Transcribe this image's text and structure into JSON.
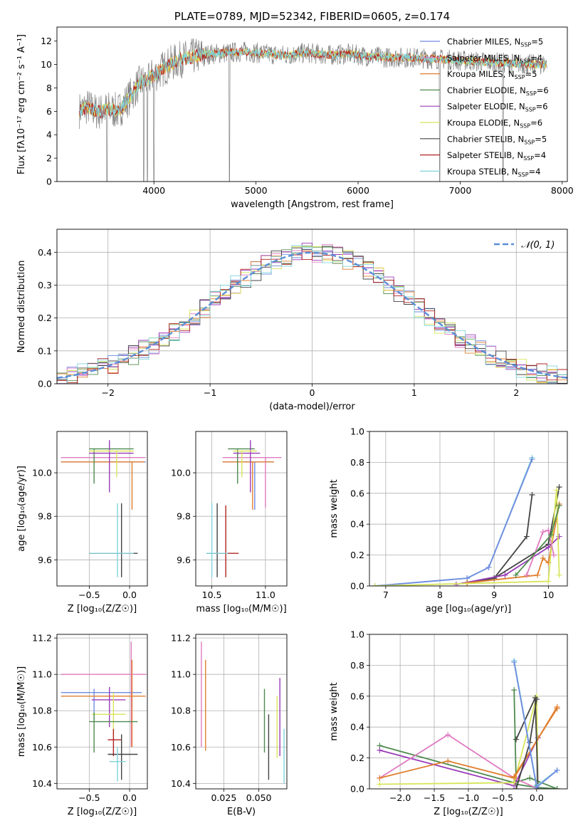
{
  "colors": {
    "chabrier_miles": "#6f8bdf",
    "salpeter_miles": "#e07bc0",
    "kroupa_miles": "#e07f2f",
    "chabrier_elodie": "#4f8a4f",
    "salpeter_elodie": "#9a3cb8",
    "kroupa_elodie": "#d8e55b",
    "chabrier_stelib": "#444444",
    "salpeter_stelib": "#b22222",
    "kroupa_stelib": "#7fd4dc",
    "gaussian": "#5b8ed6",
    "spectrum_gray": "#808080",
    "grid": "#b0b0b0"
  },
  "chart_data": [
    {
      "id": "spectrum",
      "type": "line",
      "title": "PLATE=0789, MJD=52342, FIBERID=0605, z=0.174",
      "xlabel": "wavelength [Angstrom, rest frame]",
      "ylabel": "Flux [fλ10⁻¹⁷ erg cm⁻² s⁻¹ A⁻¹]",
      "xlim": [
        3050,
        8050
      ],
      "ylim": [
        0,
        13.2
      ],
      "xticks": [
        "4000",
        "5000",
        "6000",
        "7000",
        "8000"
      ],
      "yticks": [
        "0",
        "2",
        "4",
        "6",
        "8",
        "10",
        "12"
      ],
      "grid": false,
      "legend_position": "right",
      "legend": [
        {
          "label": "Chabrier MILES, N",
          "sub": "SSP",
          "tail": "=5"
        },
        {
          "label": "Salpeter MILES, N",
          "sub": "SSP",
          "tail": "=4"
        },
        {
          "label": "Kroupa MILES, N",
          "sub": "SSP",
          "tail": "=5"
        },
        {
          "label": "Chabrier ELODIE, N",
          "sub": "SSP",
          "tail": "=6"
        },
        {
          "label": "Salpeter ELODIE, N",
          "sub": "SSP",
          "tail": "=6"
        },
        {
          "label": "Kroupa ELODIE, N",
          "sub": "SSP",
          "tail": "=6"
        },
        {
          "label": "Chabrier STELIB, N",
          "sub": "SSP",
          "tail": "=5"
        },
        {
          "label": "Salpeter STELIB, N",
          "sub": "SSP",
          "tail": "=4"
        },
        {
          "label": "Kroupa STELIB, N",
          "sub": "SSP",
          "tail": "=4"
        }
      ],
      "continuum": {
        "x": [
          3270,
          3350,
          3450,
          3550,
          3650,
          3750,
          3850,
          3950,
          4050,
          4150,
          4250,
          4400,
          4550,
          4700,
          4900,
          5100,
          5300,
          5500,
          5700,
          5900,
          6100,
          6300,
          6500,
          6700,
          6900,
          7100,
          7300,
          7500,
          7700,
          7850
        ],
        "y": [
          6.1,
          6.4,
          5.9,
          6.2,
          6.0,
          7.1,
          8.3,
          8.8,
          9.4,
          10.0,
          10.4,
          10.7,
          10.9,
          11.0,
          11.1,
          10.9,
          10.8,
          11.0,
          10.8,
          10.9,
          10.7,
          10.6,
          10.6,
          10.5,
          10.4,
          10.3,
          10.2,
          10.1,
          10.0,
          10.0
        ]
      },
      "dips": [
        {
          "x": 3540,
          "depth": 0.0
        },
        {
          "x": 3900,
          "depth": 0.0
        },
        {
          "x": 3935,
          "depth": 0.0
        },
        {
          "x": 4000,
          "depth": 0.0
        },
        {
          "x": 4740,
          "depth": 0.0
        },
        {
          "x": 6800,
          "depth": 0.0
        },
        {
          "x": 7420,
          "depth": 0.0
        }
      ]
    },
    {
      "id": "residuals",
      "type": "histogram",
      "xlabel": "(data-model)/error",
      "ylabel": "Normed distribution",
      "xlim": [
        -2.5,
        2.5
      ],
      "ylim": [
        0,
        0.47
      ],
      "xticks": [
        "−2",
        "−1",
        "0",
        "1",
        "2"
      ],
      "yticks": [
        "0.0",
        "0.1",
        "0.2",
        "0.3",
        "0.4"
      ],
      "grid": true,
      "legend_position": "top-right",
      "legend": "𝒩(0, 1)",
      "bin_width": 0.1
    },
    {
      "id": "age_vs_Z",
      "type": "errorbar",
      "xlabel": "Z [log₁₀(Z/Z☉)]",
      "ylabel": "age  [log₁₀(age/yr)]",
      "xlim": [
        -0.9,
        0.22
      ],
      "ylim": [
        9.48,
        10.19
      ],
      "xticks": [
        "−0.5",
        "0.0"
      ],
      "yticks": [
        "9.6",
        "9.8",
        "10.0"
      ],
      "grid": true,
      "points": [
        {
          "series": "chabrier_miles",
          "x": -0.85,
          "xe": [
            -0.85,
            0.2
          ],
          "y": 10.05,
          "ye": [
            10.05,
            10.05
          ]
        },
        {
          "series": "salpeter_miles",
          "x": -0.85,
          "xe": [
            -0.85,
            0.2
          ],
          "y": 10.07,
          "ye": [
            10.07,
            10.07
          ]
        },
        {
          "series": "kroupa_miles",
          "x": 0.03,
          "xe": [
            -0.85,
            0.18
          ],
          "y": 10.05,
          "ye": [
            9.83,
            10.05
          ]
        },
        {
          "series": "chabrier_elodie",
          "x": -0.44,
          "xe": [
            -0.5,
            0.05
          ],
          "y": 10.11,
          "ye": [
            9.95,
            10.11
          ]
        },
        {
          "series": "salpeter_elodie",
          "x": -0.25,
          "xe": [
            -0.5,
            0.05
          ],
          "y": 10.09,
          "ye": [
            9.91,
            10.15
          ]
        },
        {
          "series": "kroupa_elodie",
          "x": -0.16,
          "xe": [
            -0.5,
            0.05
          ],
          "y": 10.1,
          "ye": [
            9.98,
            10.1
          ]
        },
        {
          "series": "chabrier_stelib",
          "x": -0.1,
          "xe": [
            -0.5,
            0.1
          ],
          "y": 9.63,
          "ye": [
            9.52,
            9.86
          ]
        },
        {
          "series": "salpeter_stelib",
          "x": -0.27,
          "xe": [
            -0.5,
            0.05
          ],
          "y": 9.63,
          "ye": [
            9.63,
            9.63
          ]
        },
        {
          "series": "kroupa_stelib",
          "x": -0.15,
          "xe": [
            -0.5,
            0.05
          ],
          "y": 9.63,
          "ye": [
            9.52,
            9.86
          ]
        }
      ]
    },
    {
      "id": "age_vs_mass",
      "type": "errorbar",
      "xlabel": "mass [log₁₀(M/M☉)]",
      "ylabel": "",
      "xlim": [
        10.35,
        11.2
      ],
      "ylim": [
        9.48,
        10.19
      ],
      "xticks": [
        "10.5",
        "11.0"
      ],
      "yticks": [
        "9.6",
        "9.8",
        "10.0"
      ],
      "grid": true,
      "points": [
        {
          "series": "chabrier_miles",
          "x": 10.9,
          "xe": [
            10.6,
            11.08
          ],
          "y": 10.05,
          "ye": [
            9.83,
            10.05
          ]
        },
        {
          "series": "salpeter_miles",
          "x": 11.0,
          "xe": [
            10.6,
            11.15
          ],
          "y": 10.07,
          "ye": [
            9.84,
            10.07
          ]
        },
        {
          "series": "kroupa_miles",
          "x": 10.88,
          "xe": [
            10.6,
            11.08
          ],
          "y": 10.05,
          "ye": [
            9.83,
            10.05
          ]
        },
        {
          "series": "chabrier_elodie",
          "x": 10.74,
          "xe": [
            10.65,
            10.9
          ],
          "y": 10.11,
          "ye": [
            9.95,
            10.11
          ]
        },
        {
          "series": "salpeter_elodie",
          "x": 10.86,
          "xe": [
            10.7,
            10.95
          ],
          "y": 10.09,
          "ye": [
            9.91,
            10.15
          ]
        },
        {
          "series": "kroupa_elodie",
          "x": 10.78,
          "xe": [
            10.7,
            10.92
          ],
          "y": 10.1,
          "ye": [
            9.98,
            10.1
          ]
        },
        {
          "series": "chabrier_stelib",
          "x": 10.55,
          "xe": [
            10.45,
            10.65
          ],
          "y": 9.63,
          "ye": [
            9.52,
            9.86
          ]
        },
        {
          "series": "salpeter_stelib",
          "x": 10.63,
          "xe": [
            10.5,
            10.75
          ],
          "y": 9.63,
          "ye": [
            9.52,
            9.85
          ]
        },
        {
          "series": "kroupa_stelib",
          "x": 10.5,
          "xe": [
            10.45,
            10.65
          ],
          "y": 9.63,
          "ye": [
            9.52,
            9.86
          ]
        }
      ]
    },
    {
      "id": "mass_weight_vs_age",
      "type": "line",
      "xlabel": "age  [log₁₀(age/yr)]",
      "ylabel": "mass weight",
      "xlim": [
        6.7,
        10.35
      ],
      "ylim": [
        0,
        1.0
      ],
      "xticks": [
        "7",
        "8",
        "9",
        "10"
      ],
      "yticks": [
        "0.0",
        "0.2",
        "0.4",
        "0.6",
        "0.8",
        "1.0"
      ],
      "grid": true,
      "series": [
        {
          "series": "kroupa_stelib",
          "x": [
            6.8,
            8.5,
            8.9,
            9.7
          ],
          "y": [
            0.0,
            0.05,
            0.12,
            0.83
          ]
        },
        {
          "series": "chabrier_miles",
          "x": [
            6.8,
            8.5,
            8.9,
            9.7
          ],
          "y": [
            0.0,
            0.05,
            0.12,
            0.82
          ]
        },
        {
          "series": "chabrier_stelib",
          "x": [
            8.5,
            9.0,
            9.6,
            9.7
          ],
          "y": [
            0.02,
            0.05,
            0.32,
            0.59
          ]
        },
        {
          "series": "chabrier_stelib",
          "x": [
            8.5,
            9.0,
            10.0,
            10.2
          ],
          "y": [
            0.02,
            0.05,
            0.27,
            0.64
          ]
        },
        {
          "series": "salpeter_elodie",
          "x": [
            8.3,
            9.2,
            10.0,
            10.2
          ],
          "y": [
            0.01,
            0.07,
            0.25,
            0.32
          ]
        },
        {
          "series": "kroupa_miles",
          "x": [
            8.5,
            9.8,
            9.9,
            10.0,
            10.2
          ],
          "y": [
            0.02,
            0.07,
            0.18,
            0.15,
            0.53
          ]
        },
        {
          "series": "kroupa_elodie",
          "x": [
            6.8,
            10.0,
            10.15,
            10.2
          ],
          "y": [
            0.0,
            0.03,
            0.62,
            0.07
          ]
        },
        {
          "series": "salpeter_miles",
          "x": [
            9.6,
            9.9,
            10.0,
            10.1
          ],
          "y": [
            0.07,
            0.35,
            0.36,
            0.2
          ]
        },
        {
          "series": "chabrier_elodie",
          "x": [
            9.4,
            10.05,
            10.2
          ],
          "y": [
            0.07,
            0.33,
            0.52
          ]
        }
      ]
    },
    {
      "id": "mass_vs_Z",
      "type": "errorbar",
      "xlabel": "Z [log₁₀(Z/Z☉)]",
      "ylabel": "mass [log₁₀(M/M☉)]",
      "xlim": [
        -0.9,
        0.22
      ],
      "ylim": [
        10.37,
        11.22
      ],
      "xticks": [
        "−0.5",
        "0.0"
      ],
      "yticks": [
        "10.4",
        "10.6",
        "10.8",
        "11.0",
        "11.2"
      ],
      "grid": true,
      "points": [
        {
          "series": "salpeter_miles",
          "x": 0.02,
          "xe": [
            -0.85,
            0.2
          ],
          "y": 11.0,
          "ye": [
            10.6,
            11.18
          ]
        },
        {
          "series": "chabrier_miles",
          "x": -0.44,
          "xe": [
            -0.85,
            0.15
          ],
          "y": 10.9,
          "ye": [
            10.75,
            10.92
          ]
        },
        {
          "series": "kroupa_miles",
          "x": 0.03,
          "xe": [
            -0.85,
            0.2
          ],
          "y": 10.88,
          "ye": [
            10.6,
            11.08
          ]
        },
        {
          "series": "salpeter_elodie",
          "x": -0.25,
          "xe": [
            -0.47,
            -0.05
          ],
          "y": 10.86,
          "ye": [
            10.71,
            10.93
          ]
        },
        {
          "series": "kroupa_elodie",
          "x": -0.2,
          "xe": [
            -0.47,
            -0.05
          ],
          "y": 10.78,
          "ye": [
            10.65,
            10.9
          ]
        },
        {
          "series": "chabrier_elodie",
          "x": -0.44,
          "xe": [
            -0.5,
            0.1
          ],
          "y": 10.74,
          "ye": [
            10.57,
            10.79
          ]
        },
        {
          "series": "salpeter_stelib",
          "x": -0.2,
          "xe": [
            -0.27,
            -0.1
          ],
          "y": 10.64,
          "ye": [
            10.55,
            10.7
          ]
        },
        {
          "series": "chabrier_stelib",
          "x": -0.1,
          "xe": [
            -0.27,
            0.1
          ],
          "y": 10.56,
          "ye": [
            10.42,
            10.67
          ]
        },
        {
          "series": "kroupa_stelib",
          "x": -0.15,
          "xe": [
            -0.25,
            -0.05
          ],
          "y": 10.52,
          "ye": [
            10.41,
            10.6
          ]
        }
      ]
    },
    {
      "id": "mass_vs_ebv",
      "type": "errorbar",
      "xlabel": "E(B-V)",
      "ylabel": "",
      "xlim": [
        0.005,
        0.07
      ],
      "ylim": [
        10.37,
        11.22
      ],
      "xticks": [
        "0.025",
        "0.050"
      ],
      "yticks": [
        "10.4",
        "10.6",
        "10.8",
        "11.0",
        "11.2"
      ],
      "grid": true,
      "points": [
        {
          "series": "salpeter_miles",
          "x": 0.009,
          "y": 11.0,
          "ye": [
            10.6,
            11.18
          ]
        },
        {
          "series": "kroupa_miles",
          "x": 0.012,
          "y": 10.88,
          "ye": [
            10.58,
            11.08
          ]
        },
        {
          "series": "chabrier_elodie",
          "x": 0.054,
          "y": 10.74,
          "ye": [
            10.57,
            10.92
          ]
        },
        {
          "series": "chabrier_stelib",
          "x": 0.057,
          "y": 10.56,
          "ye": [
            10.42,
            10.78
          ]
        },
        {
          "series": "kroupa_elodie",
          "x": 0.063,
          "y": 10.7,
          "ye": [
            10.54,
            10.88
          ]
        },
        {
          "series": "salpeter_elodie",
          "x": 0.065,
          "y": 10.8,
          "ye": [
            10.55,
            10.98
          ]
        },
        {
          "series": "kroupa_stelib",
          "x": 0.068,
          "y": 10.55,
          "ye": [
            10.4,
            10.7
          ]
        }
      ]
    },
    {
      "id": "mass_weight_vs_Z",
      "type": "line",
      "xlabel": "Z [log₁₀(Z/Z☉)]",
      "ylabel": "mass weight",
      "xlim": [
        -2.45,
        0.45
      ],
      "ylim": [
        0,
        1.0
      ],
      "xticks": [
        "−2.0",
        "−1.5",
        "−1.0",
        "−0.5",
        "0.0"
      ],
      "yticks": [
        "0.0",
        "0.2",
        "0.4",
        "0.6",
        "0.8",
        "1.0"
      ],
      "grid": true,
      "series": [
        {
          "series": "chabrier_elodie",
          "x": [
            -2.3,
            -0.33,
            -0.1,
            0.3
          ],
          "y": [
            0.28,
            0.04,
            0.07,
            0.0
          ]
        },
        {
          "series": "chabrier_elodie",
          "x": [
            -0.33,
            -0.3,
            -0.02,
            0.3
          ],
          "y": [
            0.64,
            0.03,
            0.01,
            0.0
          ]
        },
        {
          "series": "salpeter_elodie",
          "x": [
            -2.3,
            -0.33,
            0.02
          ],
          "y": [
            0.25,
            0.02,
            0.33
          ]
        },
        {
          "series": "salpeter_miles",
          "x": [
            -2.3,
            -1.3,
            -0.33,
            0.02
          ],
          "y": [
            0.07,
            0.35,
            0.07,
            0.0
          ]
        },
        {
          "series": "kroupa_elodie",
          "x": [
            -2.3,
            -0.33,
            0.0,
            0.02
          ],
          "y": [
            0.03,
            0.04,
            0.6,
            0.0
          ]
        },
        {
          "series": "kroupa_miles",
          "x": [
            -2.3,
            -1.3,
            -0.33,
            0.3
          ],
          "y": [
            0.07,
            0.18,
            0.07,
            0.53
          ]
        },
        {
          "series": "kroupa_miles",
          "x": [
            -0.33,
            0.3
          ],
          "y": [
            0.08,
            0.52
          ]
        },
        {
          "series": "chabrier_stelib",
          "x": [
            -0.3,
            -0.02,
            0.02
          ],
          "y": [
            0.32,
            0.59,
            0.0
          ]
        },
        {
          "series": "chabrier_stelib",
          "x": [
            -0.3,
            -0.1,
            0.0
          ],
          "y": [
            0.0,
            0.3,
            0.58
          ]
        },
        {
          "series": "kroupa_stelib",
          "x": [
            -0.33,
            0.0,
            0.3
          ],
          "y": [
            0.83,
            0.02,
            0.12
          ]
        },
        {
          "series": "chabrier_miles",
          "x": [
            -0.33,
            0.0,
            0.3
          ],
          "y": [
            0.82,
            0.01,
            0.12
          ]
        }
      ]
    }
  ]
}
